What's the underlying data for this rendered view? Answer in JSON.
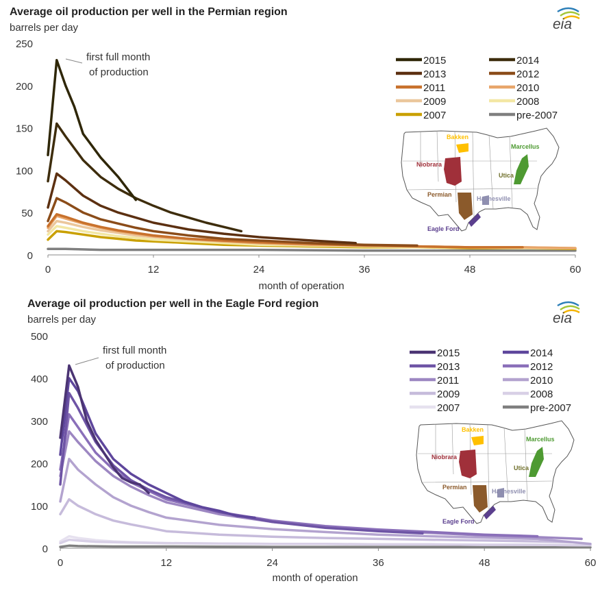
{
  "brand": {
    "logo_text": "eia"
  },
  "chart_data": [
    {
      "type": "line",
      "title": "Average oil production per well in the Permian region",
      "ylabel": "barrels per day",
      "xlabel": "month of operation",
      "xlim": [
        0,
        60
      ],
      "ylim": [
        0,
        250
      ],
      "xticks": [
        0,
        12,
        24,
        36,
        48,
        60
      ],
      "yticks": [
        0,
        50,
        100,
        150,
        200,
        250
      ],
      "annotation": {
        "line1": "first full month",
        "line2": "of production",
        "x": 1,
        "y": 230
      },
      "legend": {
        "position": "top-right"
      },
      "series": [
        {
          "name": "pre-2007",
          "color": "#7f7f7f",
          "x": [
            0,
            2,
            6,
            12,
            24,
            36,
            48,
            60
          ],
          "y": [
            7,
            7,
            6,
            6,
            6,
            5,
            5,
            5
          ]
        },
        {
          "name": "2007",
          "color": "#c9a000",
          "x": [
            0,
            1,
            2,
            4,
            6,
            8,
            10,
            12,
            16,
            20,
            24,
            30,
            36,
            42,
            48,
            54,
            60
          ],
          "y": [
            18,
            28,
            27,
            24,
            21,
            19,
            17,
            16,
            14,
            12,
            11,
            10,
            9,
            9,
            8,
            8,
            7
          ]
        },
        {
          "name": "2008",
          "color": "#f3e7a4",
          "x": [
            0,
            1,
            2,
            4,
            6,
            8,
            10,
            12,
            16,
            20,
            24,
            30,
            36,
            42,
            48,
            54,
            60
          ],
          "y": [
            24,
            34,
            32,
            28,
            25,
            22,
            20,
            18,
            16,
            14,
            12,
            11,
            10,
            9,
            9,
            8,
            8
          ]
        },
        {
          "name": "2009",
          "color": "#ebc79c",
          "x": [
            0,
            1,
            2,
            4,
            6,
            8,
            10,
            12,
            16,
            20,
            24,
            30,
            36,
            42,
            48,
            54,
            60
          ],
          "y": [
            28,
            40,
            38,
            33,
            29,
            26,
            23,
            21,
            18,
            16,
            14,
            12,
            11,
            10,
            9,
            9,
            8
          ]
        },
        {
          "name": "2010",
          "color": "#e8a56a",
          "x": [
            0,
            1,
            2,
            4,
            6,
            8,
            10,
            12,
            16,
            20,
            24,
            30,
            36,
            42,
            48,
            54,
            60
          ],
          "y": [
            32,
            46,
            43,
            37,
            32,
            28,
            25,
            22,
            19,
            16,
            14,
            12,
            11,
            10,
            9,
            9,
            8
          ]
        },
        {
          "name": "2011",
          "color": "#c8712c",
          "x": [
            0,
            1,
            2,
            4,
            6,
            8,
            10,
            12,
            16,
            20,
            24,
            30,
            36,
            42,
            48,
            54
          ],
          "y": [
            34,
            48,
            45,
            38,
            33,
            29,
            26,
            23,
            19,
            17,
            15,
            13,
            11,
            10,
            9,
            9
          ]
        },
        {
          "name": "2012",
          "color": "#8b4c19",
          "x": [
            0,
            1,
            2,
            4,
            6,
            8,
            10,
            12,
            16,
            20,
            24,
            30,
            36,
            42
          ],
          "y": [
            40,
            67,
            62,
            50,
            42,
            37,
            32,
            28,
            23,
            19,
            17,
            14,
            12,
            11
          ]
        },
        {
          "name": "2013",
          "color": "#5c3011",
          "x": [
            0,
            1,
            2,
            4,
            6,
            8,
            10,
            12,
            16,
            20,
            24,
            30,
            35
          ],
          "y": [
            56,
            96,
            88,
            70,
            58,
            50,
            44,
            38,
            30,
            25,
            21,
            17,
            14
          ]
        },
        {
          "name": "2014",
          "color": "#3e2d0d",
          "x": [
            0,
            1,
            2,
            4,
            6,
            8,
            10,
            12,
            14,
            16,
            18,
            20,
            22
          ],
          "y": [
            87,
            155,
            140,
            112,
            92,
            78,
            67,
            58,
            50,
            44,
            38,
            33,
            28
          ]
        },
        {
          "name": "2015",
          "color": "#2f2708",
          "x": [
            0,
            1,
            2,
            3,
            4,
            6,
            8,
            10
          ],
          "y": [
            118,
            230,
            200,
            175,
            143,
            115,
            92,
            65
          ]
        }
      ]
    },
    {
      "type": "line",
      "title": "Average oil production per well in the Eagle Ford region",
      "ylabel": "barrels per day",
      "xlabel": "month of operation",
      "xlim": [
        0,
        60
      ],
      "ylim": [
        0,
        500
      ],
      "xticks": [
        0,
        12,
        24,
        36,
        48,
        60
      ],
      "yticks": [
        0,
        100,
        200,
        300,
        400,
        500
      ],
      "annotation": {
        "line1": "first full month",
        "line2": "of production",
        "x": 1,
        "y": 430
      },
      "legend": {
        "position": "top-right"
      },
      "series": [
        {
          "name": "pre-2007",
          "color": "#7f7f7f",
          "x": [
            0,
            1,
            2,
            6,
            12,
            24,
            36,
            48,
            60
          ],
          "y": [
            3,
            6,
            5,
            4,
            4,
            3,
            3,
            3,
            2
          ]
        },
        {
          "name": "2007",
          "color": "#e6e1ef",
          "x": [
            0,
            1,
            2,
            4,
            6,
            8,
            12,
            18,
            24,
            30,
            36,
            42,
            48,
            54,
            60
          ],
          "y": [
            16,
            28,
            24,
            19,
            16,
            14,
            12,
            11,
            10,
            10,
            9,
            9,
            8,
            8,
            7
          ]
        },
        {
          "name": "2008",
          "color": "#d8d0e6",
          "x": [
            0,
            1,
            2,
            4,
            6,
            8,
            12,
            18,
            24,
            30,
            36,
            42,
            48,
            54,
            60
          ],
          "y": [
            12,
            20,
            18,
            15,
            14,
            13,
            12,
            11,
            10,
            10,
            9,
            9,
            8,
            8,
            7
          ]
        },
        {
          "name": "2009",
          "color": "#c6bbdb",
          "x": [
            0,
            1,
            2,
            4,
            6,
            8,
            10,
            12,
            18,
            24,
            30,
            36,
            42,
            48,
            54,
            58
          ],
          "y": [
            80,
            115,
            100,
            80,
            65,
            56,
            48,
            40,
            32,
            27,
            24,
            22,
            20,
            18,
            16,
            14
          ]
        },
        {
          "name": "2010",
          "color": "#b3a3cf",
          "x": [
            0,
            1,
            2,
            4,
            6,
            8,
            10,
            12,
            18,
            24,
            30,
            36,
            42,
            48,
            54,
            60
          ],
          "y": [
            110,
            210,
            185,
            150,
            120,
            100,
            85,
            72,
            55,
            45,
            38,
            32,
            28,
            25,
            22,
            10
          ]
        },
        {
          "name": "2011",
          "color": "#9d87c2",
          "x": [
            0,
            1,
            2,
            4,
            6,
            8,
            10,
            12,
            18,
            24,
            30,
            36,
            42,
            48,
            54,
            59
          ],
          "y": [
            170,
            275,
            250,
            205,
            170,
            145,
            125,
            108,
            80,
            62,
            50,
            42,
            36,
            30,
            26,
            22
          ]
        },
        {
          "name": "2012",
          "color": "#8a6fb9",
          "x": [
            0,
            1,
            2,
            4,
            6,
            8,
            10,
            12,
            18,
            24,
            30,
            36,
            42,
            48,
            54
          ],
          "y": [
            185,
            315,
            285,
            225,
            185,
            155,
            135,
            115,
            85,
            65,
            52,
            44,
            38,
            32,
            28
          ]
        },
        {
          "name": "2013",
          "color": "#6e54a5",
          "x": [
            0,
            1,
            2,
            4,
            6,
            8,
            10,
            12,
            18,
            24,
            30,
            36,
            41
          ],
          "y": [
            150,
            365,
            330,
            250,
            195,
            160,
            138,
            120,
            85,
            62,
            48,
            40,
            35
          ]
        },
        {
          "name": "2014",
          "color": "#5e469c",
          "x": [
            0,
            1,
            2,
            4,
            6,
            8,
            10,
            12,
            14,
            16,
            18,
            20,
            22
          ],
          "y": [
            220,
            400,
            370,
            270,
            210,
            175,
            150,
            130,
            110,
            97,
            88,
            76,
            72
          ]
        },
        {
          "name": "2015",
          "color": "#4b3473",
          "x": [
            0,
            1,
            2,
            3,
            4,
            6,
            7,
            8,
            9,
            10
          ],
          "y": [
            260,
            430,
            380,
            300,
            255,
            190,
            165,
            155,
            150,
            130
          ]
        }
      ]
    }
  ],
  "inset_map": {
    "labels": {
      "bakken": "Bakken",
      "marcellus": "Marcellus",
      "niobrara": "Niobrara",
      "utica": "Utica",
      "permian": "Permian",
      "haynesville": "Haynesville",
      "eagle_ford": "Eagle Ford"
    },
    "colors": {
      "bakken": "#ffc000",
      "marcellus": "#4e9a32",
      "niobrara": "#a0303a",
      "utica": "#6f6f2a",
      "permian": "#8b5a2b",
      "haynesville": "#8f8fb0",
      "eagle_ford": "#5b3f8e"
    }
  }
}
